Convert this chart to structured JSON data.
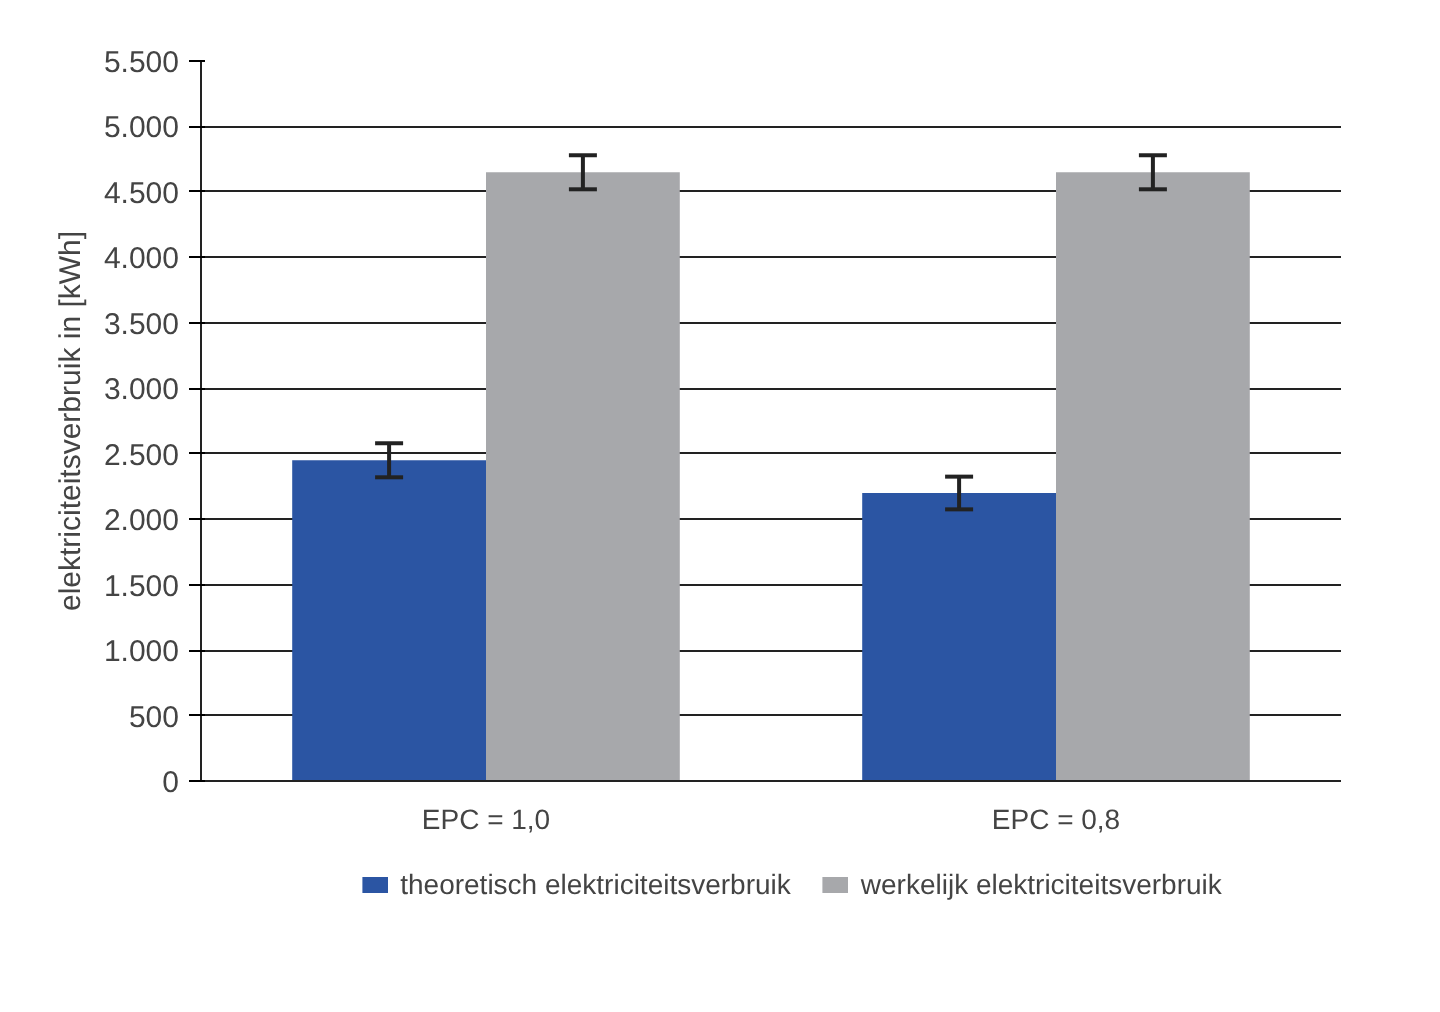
{
  "chart_data": {
    "type": "bar",
    "ylabel": "elektriciteitsverbruik in [kWh]",
    "categories": [
      "EPC = 1,0",
      "EPC = 0,8"
    ],
    "series": [
      {
        "name": "theoretisch elektriciteitsverbruik",
        "color": "#2b55a3",
        "values": [
          2450,
          2200
        ],
        "errors": [
          130,
          125
        ]
      },
      {
        "name": "werkelijk elektriciteitsverbruik",
        "color": "#a7a8ab",
        "values": [
          4650,
          4650
        ],
        "errors": [
          130,
          130
        ]
      }
    ],
    "ylim": [
      0,
      5500
    ],
    "yticks": [
      {
        "value": 0,
        "label": "0"
      },
      {
        "value": 500,
        "label": "500"
      },
      {
        "value": 1000,
        "label": "1.000"
      },
      {
        "value": 1500,
        "label": "1.500"
      },
      {
        "value": 2000,
        "label": "2.000"
      },
      {
        "value": 2500,
        "label": "2.500"
      },
      {
        "value": 3000,
        "label": "3.000"
      },
      {
        "value": 3500,
        "label": "3.500"
      },
      {
        "value": 4000,
        "label": "4.000"
      },
      {
        "value": 4500,
        "label": "4.500"
      },
      {
        "value": 5000,
        "label": "5.000"
      },
      {
        "value": 5500,
        "label": "5.500"
      }
    ],
    "grid": "y",
    "legend": "bottom"
  }
}
